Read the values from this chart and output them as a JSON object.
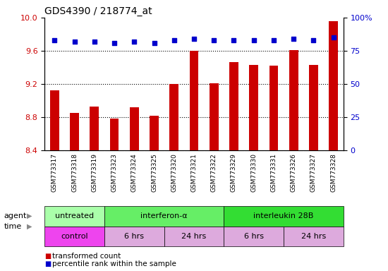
{
  "title": "GDS4390 / 218774_at",
  "samples": [
    "GSM773317",
    "GSM773318",
    "GSM773319",
    "GSM773323",
    "GSM773324",
    "GSM773325",
    "GSM773320",
    "GSM773321",
    "GSM773322",
    "GSM773329",
    "GSM773330",
    "GSM773331",
    "GSM773326",
    "GSM773327",
    "GSM773328"
  ],
  "bar_values": [
    9.12,
    8.85,
    8.93,
    8.78,
    8.92,
    8.82,
    9.2,
    9.6,
    9.21,
    9.46,
    9.43,
    9.42,
    9.61,
    9.43,
    9.96
  ],
  "dot_values": [
    83,
    82,
    82,
    81,
    82,
    81,
    83,
    84,
    83,
    83,
    83,
    83,
    84,
    83,
    85
  ],
  "ylim_left": [
    8.4,
    10.0
  ],
  "ylim_right": [
    0,
    100
  ],
  "yticks_left": [
    8.4,
    8.8,
    9.2,
    9.6,
    10.0
  ],
  "yticks_right": [
    0,
    25,
    50,
    75,
    100
  ],
  "ytick_labels_right": [
    "0",
    "25",
    "50",
    "75",
    "100%"
  ],
  "bar_color": "#cc0000",
  "dot_color": "#0000cc",
  "agent_groups": [
    {
      "label": "untreated",
      "start": 0,
      "end": 3,
      "color": "#aaffaa"
    },
    {
      "label": "interferon-α",
      "start": 3,
      "end": 9,
      "color": "#66ee66"
    },
    {
      "label": "interleukin 28B",
      "start": 9,
      "end": 15,
      "color": "#33dd33"
    }
  ],
  "time_groups": [
    {
      "label": "control",
      "start": 0,
      "end": 3,
      "color": "#ee44ee"
    },
    {
      "label": "6 hrs",
      "start": 3,
      "end": 6,
      "color": "#ddaadd"
    },
    {
      "label": "24 hrs",
      "start": 6,
      "end": 9,
      "color": "#ddaadd"
    },
    {
      "label": "6 hrs",
      "start": 9,
      "end": 12,
      "color": "#ddaadd"
    },
    {
      "label": "24 hrs",
      "start": 12,
      "end": 15,
      "color": "#ddaadd"
    }
  ],
  "legend_items": [
    {
      "color": "#cc0000",
      "label": "transformed count"
    },
    {
      "color": "#0000cc",
      "label": "percentile rank within the sample"
    }
  ],
  "tick_label_color_left": "#cc0000",
  "tick_label_color_right": "#0000cc",
  "bar_width": 0.45,
  "dotted_line_values": [
    8.8,
    9.2,
    9.6
  ],
  "xlabel_area_color": "#d8d8d8",
  "plot_bg": "#ffffff",
  "left_label_color": "#444444"
}
